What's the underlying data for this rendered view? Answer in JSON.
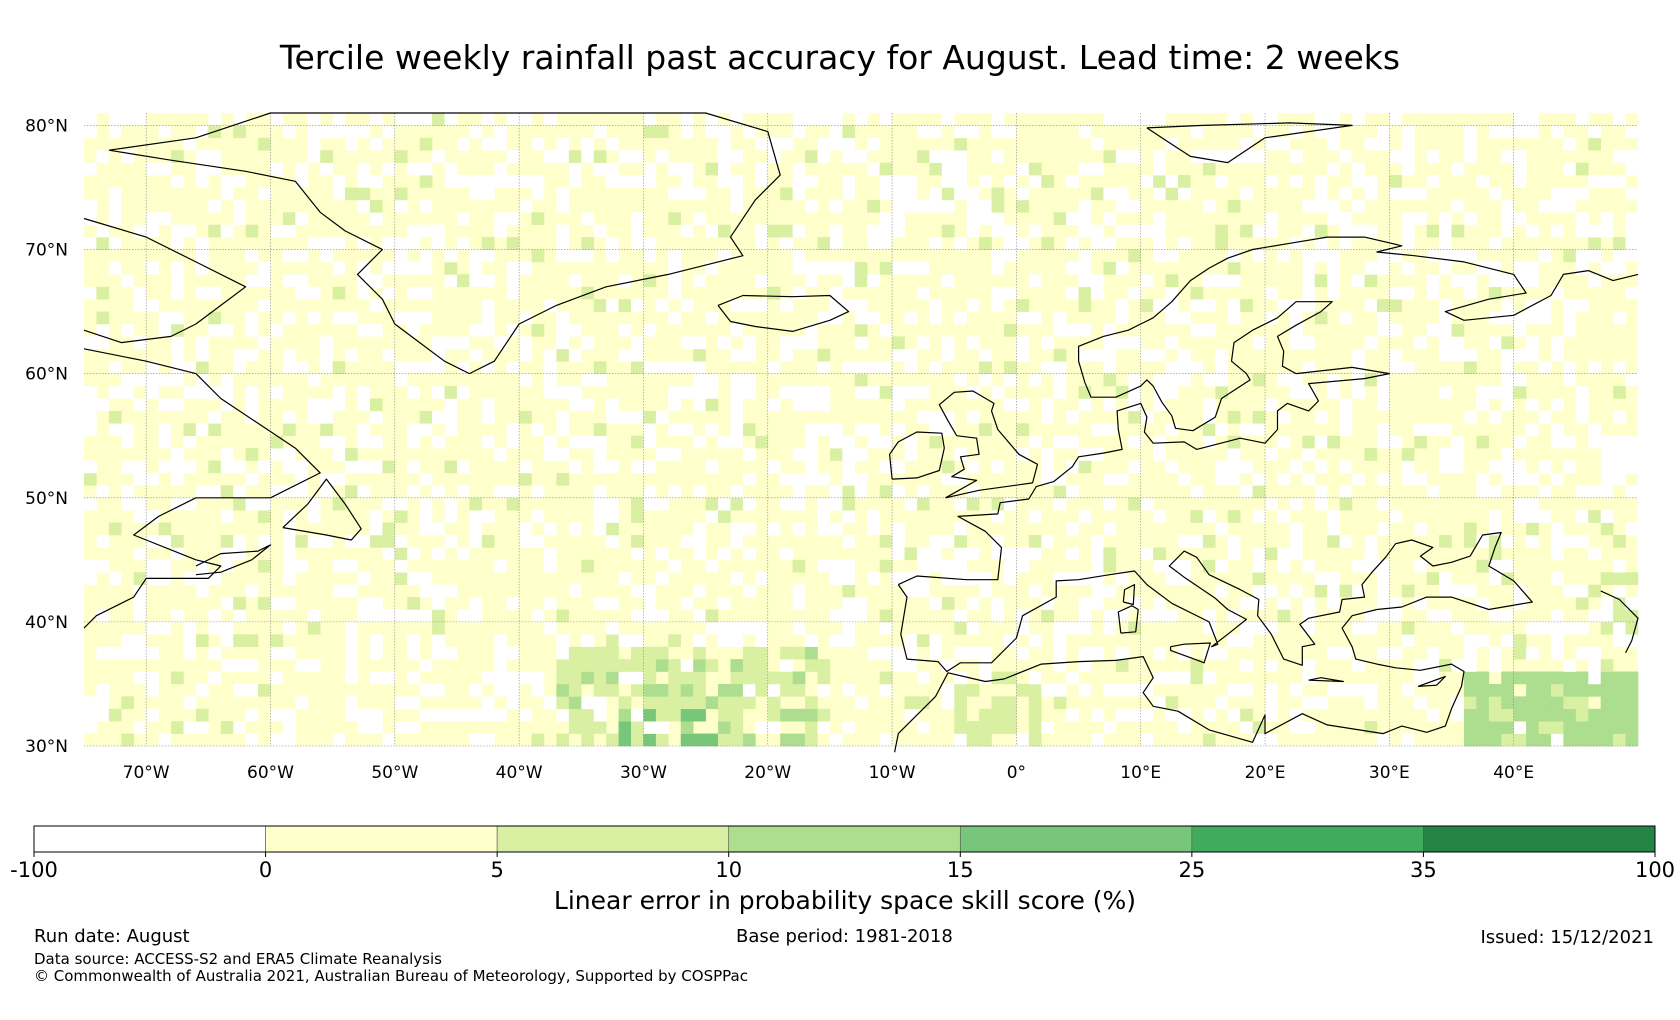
{
  "title": "Tercile weekly rainfall past accuracy for August. Lead time: 2 weeks",
  "map": {
    "lat_labels": [
      "80°N",
      "70°N",
      "60°N",
      "50°N",
      "40°N",
      "30°N"
    ],
    "lat_values": [
      80,
      70,
      60,
      50,
      40,
      30
    ],
    "lon_labels": [
      "70°W",
      "60°W",
      "50°W",
      "40°W",
      "30°W",
      "20°W",
      "10°W",
      "0°",
      "10°E",
      "20°E",
      "30°E",
      "40°E"
    ],
    "lon_values": [
      -70,
      -60,
      -50,
      -40,
      -30,
      -20,
      -10,
      0,
      10,
      20,
      30,
      40
    ],
    "extent": {
      "lon_min": -75,
      "lon_max": 50,
      "lat_min": 30,
      "lat_max": 81
    },
    "gridlines": true,
    "land_outline_color": "#000000"
  },
  "colorbar": {
    "label": "Linear error in probability space skill score (%)",
    "ticks": [
      "-100",
      "0",
      "5",
      "10",
      "15",
      "25",
      "35",
      "100"
    ],
    "colors": [
      "#ffffff",
      "#ffffcc",
      "#d9f0a3",
      "#addd8e",
      "#78c679",
      "#41ab5d",
      "#238443"
    ]
  },
  "footer": {
    "run_date": "Run date: August",
    "base_period": "Base period: 1981-2018",
    "issued": "Issued: 15/12/2021",
    "data_source": "Data source: ACCESS-S2 and ERA5 Climate Reanalysis",
    "copyright": "© Commonwealth of Australia 2021, Australian Bureau of Meteorology, Supported by COSPPac"
  }
}
